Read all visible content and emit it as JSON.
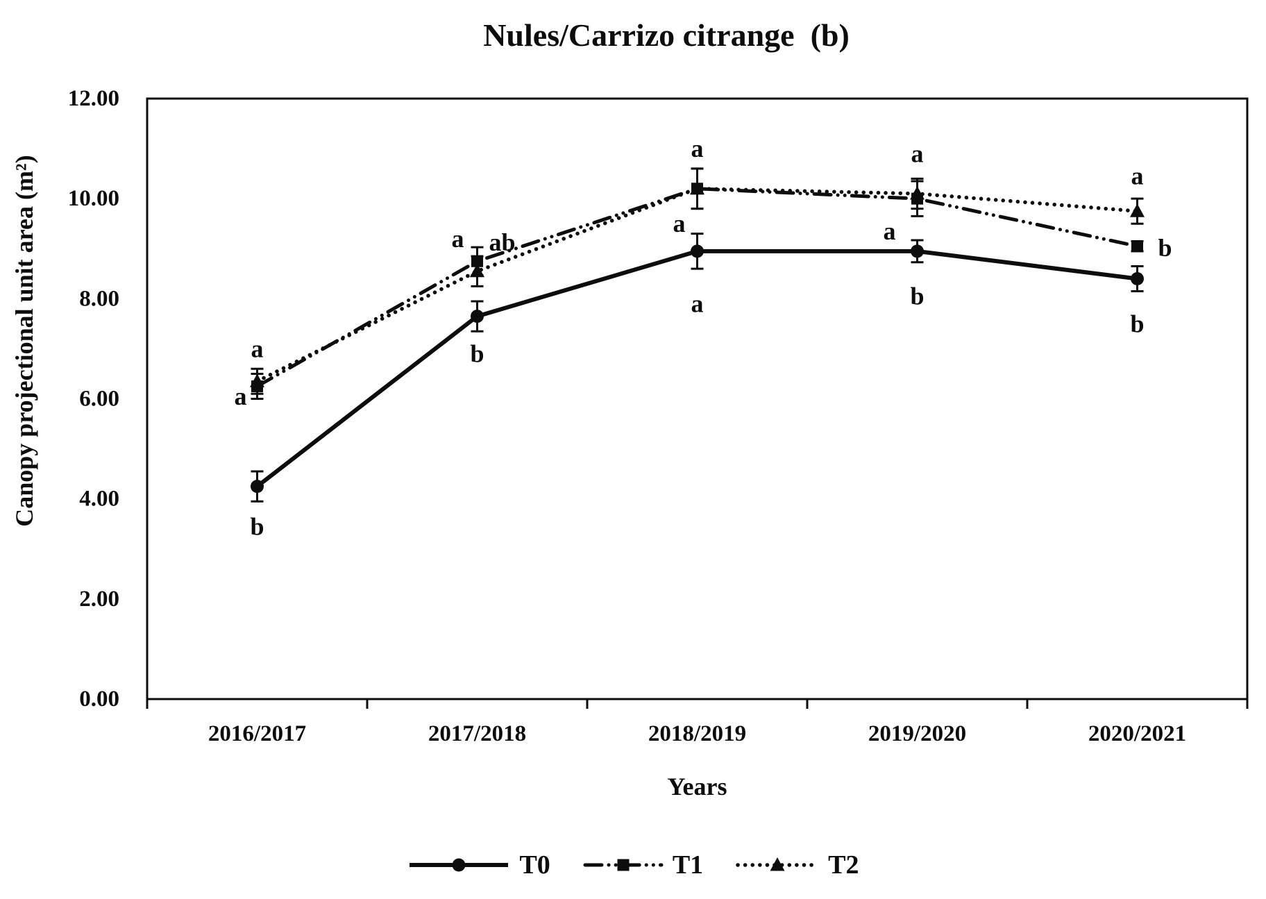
{
  "chart_data": {
    "type": "line",
    "title": "Nules/Carrizo citrange  (b)",
    "xlabel": "Years",
    "ylabel": "Canopy projectional unit area (m²)",
    "categories": [
      "2016/2017",
      "2017/2018",
      "2018/2019",
      "2019/2020",
      "2020/2021"
    ],
    "ylim": [
      0,
      12
    ],
    "ytick_step": 2,
    "ytick_labels": [
      "0.00",
      "2.00",
      "4.00",
      "6.00",
      "8.00",
      "10.00",
      "12.00"
    ],
    "grid": false,
    "legend_position": "bottom-center",
    "ink_color": "#0d0d0d",
    "background_color": "#ffffff",
    "series": [
      {
        "name": "T0",
        "line": "solid",
        "marker": "circle",
        "values": [
          4.25,
          7.65,
          8.95,
          8.95,
          8.4
        ],
        "errors": [
          0.3,
          0.3,
          0.35,
          0.22,
          0.25
        ]
      },
      {
        "name": "T1",
        "line": "dash-dot",
        "marker": "square",
        "values": [
          6.25,
          8.75,
          10.2,
          10.0,
          9.05
        ],
        "errors": [
          0.25,
          0.28,
          0.4,
          0.35,
          0.1
        ]
      },
      {
        "name": "T2",
        "line": "dotted",
        "marker": "triangle",
        "values": [
          6.35,
          8.55,
          10.2,
          10.1,
          9.75
        ],
        "errors": [
          0.25,
          0.3,
          0.4,
          0.3,
          0.25
        ]
      }
    ],
    "annotations": [
      {
        "x": 0,
        "y": 7.0,
        "text": "a"
      },
      {
        "x": 0,
        "y": 6.05,
        "dx": -24,
        "text": "a"
      },
      {
        "x": 0,
        "y": 3.45,
        "text": "b"
      },
      {
        "x": 1,
        "y": 9.2,
        "dx": -28,
        "text": "a"
      },
      {
        "x": 1,
        "y": 9.13,
        "dx": 36,
        "text": "ab"
      },
      {
        "x": 1,
        "y": 6.9,
        "text": "b"
      },
      {
        "x": 2,
        "y": 11.0,
        "text": "a"
      },
      {
        "x": 2,
        "y": 9.5,
        "dx": -26,
        "text": "a"
      },
      {
        "x": 2,
        "y": 7.9,
        "text": "a"
      },
      {
        "x": 3,
        "y": 10.9,
        "text": "a"
      },
      {
        "x": 3,
        "y": 9.35,
        "dx": -40,
        "text": "a"
      },
      {
        "x": 3,
        "y": 8.05,
        "text": "b"
      },
      {
        "x": 4,
        "y": 10.45,
        "text": "a"
      },
      {
        "x": 4,
        "y": 9.02,
        "dx": 40,
        "text": "b"
      },
      {
        "x": 4,
        "y": 7.5,
        "text": "b"
      }
    ]
  }
}
